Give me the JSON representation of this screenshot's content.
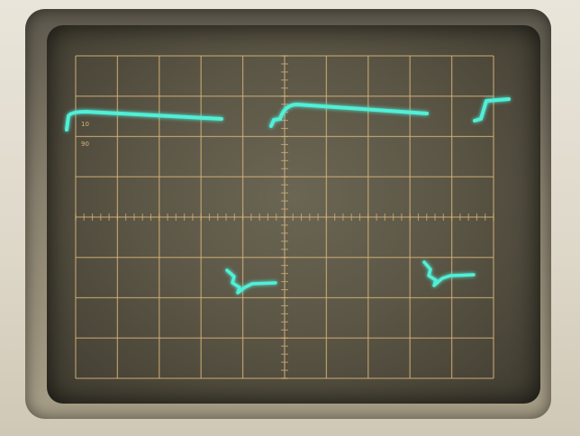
{
  "scope": {
    "background_color": "#e6e1d4",
    "screen_color": "#5b5645",
    "graticule_color": "#d7b27a",
    "trace_color": "#4ff0d7",
    "graticule": {
      "divisions_x": 10,
      "divisions_y": 8,
      "subdivisions": 5
    },
    "scale_marks": [
      "10",
      "90"
    ]
  }
}
